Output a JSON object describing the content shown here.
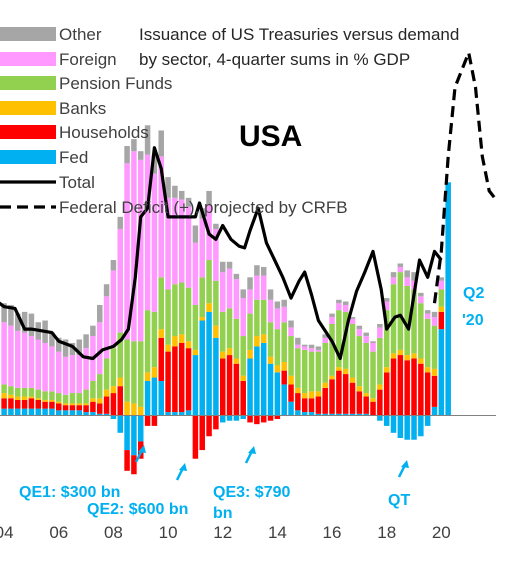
{
  "chart_data": {
    "type": "bar",
    "subtype": "stacked-bar-with-lines",
    "title": "Issuance of US Treasuries versus demand by sector, 4-quarter sums in % GDP",
    "title_lines": [
      "Issuance of US Treasuries versus demand",
      "by sector, 4-quarter sums in % GDP"
    ],
    "country_label": "USA",
    "x_tick_labels": [
      "04",
      "06",
      "08",
      "10",
      "12",
      "14",
      "16",
      "18",
      "20"
    ],
    "x_ticks": [
      2004,
      2006,
      2008,
      2010,
      2012,
      2014,
      2016,
      2018,
      2020
    ],
    "xlim": [
      2003.85,
      2022.0
    ],
    "ylim": [
      -3.5,
      20.0
    ],
    "y_axis_visible": false,
    "grid": false,
    "legend_position": "top-left",
    "colors": {
      "Other": "#a6a6a6",
      "Foreign": "#ff99ff",
      "Pension Funds": "#92d050",
      "Banks": "#ffc000",
      "Households": "#ff0000",
      "Fed": "#00b0f0",
      "Total": "#000000",
      "Federal Deficit": "#000000",
      "annotation": "#00b0f0"
    },
    "legend": [
      {
        "name": "Other",
        "kind": "box"
      },
      {
        "name": "Foreign",
        "kind": "box"
      },
      {
        "name": "Pension Funds",
        "kind": "box"
      },
      {
        "name": "Banks",
        "kind": "box"
      },
      {
        "name": "Households",
        "kind": "box"
      },
      {
        "name": "Fed",
        "kind": "box"
      },
      {
        "name": "Total",
        "kind": "line"
      },
      {
        "name": "Federal Deficit (+), projected by CRFB",
        "kind": "dash"
      }
    ],
    "stack_order": [
      "Fed",
      "Households",
      "Banks",
      "Pension Funds",
      "Foreign",
      "Other"
    ],
    "x": [
      2003.75,
      2004.0,
      2004.25,
      2004.5,
      2004.75,
      2005.0,
      2005.25,
      2005.5,
      2005.75,
      2006.0,
      2006.25,
      2006.5,
      2006.75,
      2007.0,
      2007.25,
      2007.5,
      2007.75,
      2008.0,
      2008.25,
      2008.5,
      2008.75,
      2009.0,
      2009.25,
      2009.5,
      2009.75,
      2010.0,
      2010.25,
      2010.5,
      2010.75,
      2011.0,
      2011.25,
      2011.5,
      2011.75,
      2012.0,
      2012.25,
      2012.5,
      2012.75,
      2013.0,
      2013.25,
      2013.5,
      2013.75,
      2014.0,
      2014.25,
      2014.5,
      2014.75,
      2015.0,
      2015.25,
      2015.5,
      2015.75,
      2016.0,
      2016.25,
      2016.5,
      2016.75,
      2017.0,
      2017.25,
      2017.5,
      2017.75,
      2018.0,
      2018.25,
      2018.5,
      2018.75,
      2019.0,
      2019.25,
      2019.5,
      2019.75,
      2020.0,
      2020.25
    ],
    "series": [
      {
        "name": "Fed",
        "values": [
          0.4,
          0.4,
          0.4,
          0.4,
          0.4,
          0.4,
          0.4,
          0.4,
          0.4,
          0.3,
          0.3,
          0.3,
          0.3,
          0.2,
          0.2,
          0.1,
          0.1,
          -0.2,
          -1.0,
          -2.0,
          -2.3,
          -1.5,
          2.0,
          2.2,
          2.0,
          0.2,
          0.2,
          0.2,
          0.3,
          3.5,
          5.5,
          6.0,
          4.5,
          -0.4,
          -0.3,
          -0.3,
          -0.2,
          3.3,
          4.0,
          4.2,
          3.0,
          2.5,
          1.8,
          0.8,
          0.3,
          0.2,
          0.2,
          0.1,
          0.1,
          0.1,
          0.1,
          0.1,
          0.1,
          0.1,
          0.1,
          0.0,
          -0.3,
          -0.6,
          -1.0,
          -1.3,
          -1.4,
          -1.4,
          -1.2,
          -0.6,
          0.5,
          5.0,
          13.5
        ]
      },
      {
        "name": "Households",
        "values": [
          0.5,
          0.6,
          0.6,
          0.5,
          0.5,
          0.6,
          0.5,
          0.4,
          0.4,
          0.4,
          0.3,
          0.3,
          0.3,
          0.4,
          0.6,
          0.6,
          1.0,
          1.3,
          1.7,
          -1.2,
          -1.1,
          -1.0,
          -0.6,
          -0.6,
          2.5,
          3.5,
          3.8,
          4.0,
          3.6,
          -2.5,
          -2.0,
          -1.2,
          -0.8,
          3.3,
          3.5,
          3.0,
          2.0,
          -0.4,
          -0.5,
          -0.4,
          -0.3,
          -0.2,
          0.8,
          1.0,
          1.0,
          0.8,
          0.8,
          1.0,
          1.5,
          2.0,
          2.5,
          2.3,
          1.8,
          1.3,
          1.0,
          0.8,
          1.5,
          2.5,
          3.3,
          3.5,
          3.2,
          3.3,
          3.0,
          2.5,
          1.8,
          1.0,
          0.0
        ]
      },
      {
        "name": "Banks",
        "values": [
          0.3,
          0.3,
          0.2,
          0.2,
          0.2,
          0.1,
          0.1,
          0.1,
          0.1,
          0.1,
          0.1,
          0.1,
          0.1,
          0.1,
          0.2,
          0.3,
          0.4,
          0.4,
          0.5,
          0.8,
          0.7,
          0.5,
          0.5,
          0.6,
          0.5,
          0.4,
          0.6,
          0.5,
          0.4,
          0.3,
          0.2,
          0.5,
          0.7,
          0.4,
          0.4,
          0.3,
          0.3,
          0.5,
          0.6,
          0.5,
          0.4,
          0.4,
          0.5,
          0.5,
          0.3,
          0.3,
          0.4,
          0.3,
          0.3,
          0.2,
          0.2,
          0.3,
          0.3,
          0.3,
          0.2,
          0.2,
          0.3,
          0.3,
          0.3,
          0.3,
          0.3,
          0.3,
          0.3,
          0.3,
          0.4,
          0.3,
          0.0
        ]
      },
      {
        "name": "Pension Funds",
        "values": [
          0.5,
          0.5,
          0.5,
          0.5,
          0.5,
          0.5,
          0.5,
          0.5,
          0.5,
          0.5,
          0.5,
          0.6,
          0.6,
          0.8,
          1.0,
          1.4,
          1.8,
          2.2,
          2.6,
          3.6,
          3.6,
          3.8,
          3.6,
          3.2,
          3.0,
          3.2,
          3.0,
          3.0,
          3.1,
          2.6,
          2.3,
          2.5,
          2.6,
          2.3,
          2.3,
          2.3,
          2.3,
          2.1,
          2.1,
          2.0,
          2.0,
          2.1,
          2.3,
          2.3,
          2.3,
          2.5,
          2.3,
          2.3,
          2.3,
          3.0,
          3.3,
          3.3,
          3.1,
          2.9,
          2.9,
          2.7,
          2.7,
          3.3,
          4.0,
          4.5,
          4.0,
          3.7,
          3.2,
          2.8,
          2.5,
          1.0,
          0.0
        ]
      },
      {
        "name": "Foreign",
        "values": [
          4.0,
          3.6,
          3.5,
          3.3,
          3.2,
          3.0,
          2.9,
          2.8,
          2.6,
          2.4,
          2.2,
          2.2,
          2.2,
          2.4,
          2.6,
          3.0,
          3.6,
          4.5,
          6.0,
          10.2,
          11.0,
          10.5,
          9.0,
          8.0,
          7.0,
          5.3,
          5.0,
          4.8,
          4.7,
          3.6,
          3.4,
          3.2,
          3.0,
          2.3,
          2.3,
          2.3,
          2.2,
          1.4,
          1.4,
          1.4,
          1.3,
          1.2,
          0.9,
          0.5,
          0.2,
          0.2,
          0.2,
          0.1,
          0.3,
          0.4,
          0.4,
          0.4,
          0.3,
          0.4,
          0.4,
          0.5,
          0.6,
          0.5,
          0.4,
          0.3,
          0.5,
          0.5,
          0.4,
          0.3,
          0.5,
          0.5,
          0.0
        ]
      },
      {
        "name": "Other",
        "values": [
          1.2,
          1.1,
          1.2,
          1.0,
          1.2,
          1.3,
          1.0,
          1.3,
          0.8,
          0.8,
          1.0,
          0.7,
          0.9,
          0.8,
          0.6,
          1.0,
          0.7,
          0.6,
          0.7,
          1.0,
          0.7,
          0.5,
          1.7,
          1.1,
          1.5,
          1.2,
          0.7,
          0.5,
          0.5,
          1.0,
          0.6,
          0.8,
          0.3,
          0.6,
          0.4,
          0.3,
          0.5,
          0.7,
          0.6,
          0.5,
          0.6,
          0.4,
          0.4,
          0.4,
          0.4,
          0.1,
          0.2,
          0.2,
          0.2,
          0.2,
          0.2,
          0.2,
          0.1,
          0.2,
          0.2,
          0.1,
          0.2,
          0.2,
          0.3,
          0.2,
          0.4,
          0.5,
          0.2,
          0.2,
          0.3,
          0.2,
          0.0
        ]
      }
    ],
    "total": {
      "name": "Total",
      "x": [
        2003.75,
        2004.0,
        2004.4,
        2004.75,
        2005.0,
        2005.4,
        2005.75,
        2006.0,
        2006.5,
        2006.9,
        2007.25,
        2007.6,
        2008.0,
        2008.3,
        2008.55,
        2008.8,
        2009.0,
        2009.25,
        2009.5,
        2009.75,
        2010.0,
        2010.5,
        2011.0,
        2011.15,
        2011.5,
        2011.75,
        2012.0,
        2012.3,
        2012.6,
        2012.8,
        2013.0,
        2013.3,
        2013.6,
        2013.9,
        2014.2,
        2014.5,
        2014.8,
        2015.0,
        2015.25,
        2015.5,
        2015.75,
        2016.0,
        2016.3,
        2016.6,
        2016.9,
        2017.2,
        2017.5,
        2017.8,
        2018.0,
        2018.3,
        2018.5,
        2018.8,
        2019.0,
        2019.2,
        2019.5,
        2019.75,
        2020.0
      ],
      "values": [
        6.6,
        6.3,
        6.2,
        5.0,
        5.0,
        4.9,
        4.8,
        4.3,
        4.0,
        3.4,
        3.3,
        3.8,
        4.0,
        4.4,
        5.0,
        8.0,
        11.5,
        12.0,
        15.5,
        14.3,
        11.5,
        11.5,
        11.5,
        12.3,
        10.5,
        10.2,
        11.0,
        10.2,
        9.8,
        9.7,
        10.7,
        12.0,
        10.0,
        9.0,
        8.0,
        6.8,
        7.8,
        8.3,
        7.0,
        5.5,
        4.9,
        4.3,
        3.3,
        5.5,
        7.2,
        8.3,
        9.5,
        7.3,
        5.0,
        5.7,
        5.8,
        5.0,
        7.0,
        9.0,
        8.0,
        9.5,
        9.0
      ]
    },
    "deficit": {
      "name": "Federal Deficit (+), projected by CRFB",
      "x": [
        2019.75,
        2020.0,
        2020.25,
        2020.5,
        2020.75,
        2021.0,
        2021.25,
        2021.5,
        2021.75,
        2022.0
      ],
      "values": [
        6.5,
        9.5,
        15.0,
        19.0,
        20.0,
        21.0,
        19.0,
        15.0,
        13.0,
        12.5
      ]
    },
    "annotations": [
      {
        "text": "QE1: $300 bn",
        "arrow_x": 2009.2
      },
      {
        "text": "QE2: $600 bn",
        "arrow_x": 2011.2
      },
      {
        "text": "QE3: $790",
        "text_line2": "bn",
        "arrow_x": 2013.1
      },
      {
        "text": "QT",
        "arrow_x": 2018.9
      },
      {
        "text": "Q2",
        "text_line2": "'20"
      }
    ]
  }
}
